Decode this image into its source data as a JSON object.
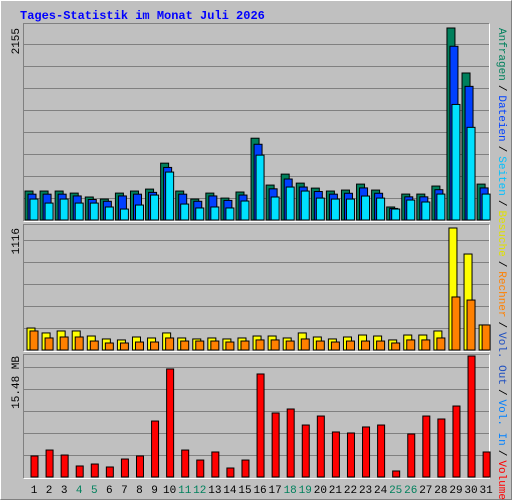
{
  "title": "Tages-Statistik im Monat Juli 2026",
  "categories": [
    "1",
    "2",
    "3",
    "4",
    "5",
    "6",
    "7",
    "8",
    "9",
    "10",
    "11",
    "12",
    "13",
    "14",
    "15",
    "16",
    "17",
    "18",
    "19",
    "20",
    "21",
    "22",
    "23",
    "24",
    "25",
    "26",
    "27",
    "28",
    "29",
    "30",
    "31"
  ],
  "category_colors": [
    "#000000",
    "#000000",
    "#000000",
    "#00805c",
    "#00805c",
    "#000000",
    "#000000",
    "#000000",
    "#000000",
    "#000000",
    "#00805c",
    "#00805c",
    "#000000",
    "#000000",
    "#000000",
    "#000000",
    "#000000",
    "#00805c",
    "#00805c",
    "#000000",
    "#000000",
    "#000000",
    "#000000",
    "#000000",
    "#00805c",
    "#00805c",
    "#000000",
    "#000000",
    "#000000",
    "#000000",
    "#000000"
  ],
  "legend": [
    {
      "name": "Anfragen",
      "color": "#00805c"
    },
    {
      "name": "Dateien",
      "color": "#0040ff"
    },
    {
      "name": "Seiten",
      "color": "#00c0ff"
    },
    {
      "name": "Besuche",
      "color": "#e0e000"
    },
    {
      "name": "Rechner",
      "color": "#ff8000"
    },
    {
      "name": "Vol. Out",
      "color": "#2050c0"
    },
    {
      "name": "Vol. In",
      "color": "#0080ff"
    },
    {
      "name": "Volumen",
      "color": "#ff0000"
    }
  ],
  "legend_separator": "/",
  "chart_data": [
    {
      "type": "bar",
      "ylim": [
        0,
        2155
      ],
      "yticks": [
        2155
      ],
      "series": [
        {
          "color": "#00805c",
          "values": [
            325,
            325,
            325,
            302,
            258,
            235,
            302,
            325,
            347,
            638,
            325,
            235,
            302,
            246,
            314,
            918,
            392,
            515,
            414,
            358,
            325,
            336,
            403,
            336,
            146,
            291,
            291,
            381,
            2155,
            1650,
            403
          ]
        },
        {
          "color": "#0040ff",
          "values": [
            290,
            290,
            290,
            270,
            230,
            210,
            270,
            290,
            310,
            590,
            290,
            210,
            270,
            220,
            280,
            850,
            350,
            460,
            370,
            320,
            290,
            300,
            360,
            300,
            130,
            260,
            260,
            340,
            1950,
            1500,
            360
          ]
        },
        {
          "color": "#00e0ff",
          "values": [
            235,
            190,
            235,
            190,
            190,
            146,
            123,
            168,
            280,
            538,
            179,
            135,
            146,
            135,
            213,
            728,
            258,
            370,
            325,
            246,
            235,
            235,
            269,
            246,
            123,
            224,
            202,
            291,
            1297,
            1040,
            291
          ]
        }
      ]
    },
    {
      "type": "bar",
      "ylim": [
        0,
        1116
      ],
      "yticks": [
        1116
      ],
      "series": [
        {
          "color": "#ffff00",
          "values": [
            201,
            156,
            174,
            174,
            128,
            101,
            92,
            119,
            110,
            156,
            110,
            101,
            110,
            101,
            110,
            128,
            128,
            110,
            156,
            119,
            101,
            119,
            137,
            128,
            92,
            137,
            137,
            174,
            1116,
            878,
            229
          ]
        },
        {
          "color": "#ff8000",
          "values": [
            174,
            110,
            119,
            119,
            82,
            64,
            64,
            73,
            73,
            110,
            82,
            82,
            82,
            73,
            82,
            92,
            92,
            82,
            101,
            82,
            73,
            82,
            82,
            82,
            64,
            92,
            92,
            110,
            485,
            457,
            229
          ]
        }
      ]
    },
    {
      "type": "bar",
      "ylim": [
        0,
        15.48
      ],
      "yticks": [
        {
          "value": 15.48,
          "label": "15.48 MB"
        }
      ],
      "series": [
        {
          "color": "#ff0000",
          "values": [
            2.69,
            3.45,
            2.81,
            1.41,
            1.66,
            1.28,
            2.3,
            2.69,
            7.16,
            13.82,
            3.45,
            2.17,
            3.2,
            1.15,
            2.17,
            13.18,
            8.19,
            8.7,
            6.65,
            7.8,
            5.76,
            5.63,
            6.4,
            6.65,
            0.77,
            5.5,
            7.8,
            7.42,
            9.08,
            15.48,
            3.2
          ]
        }
      ]
    }
  ]
}
